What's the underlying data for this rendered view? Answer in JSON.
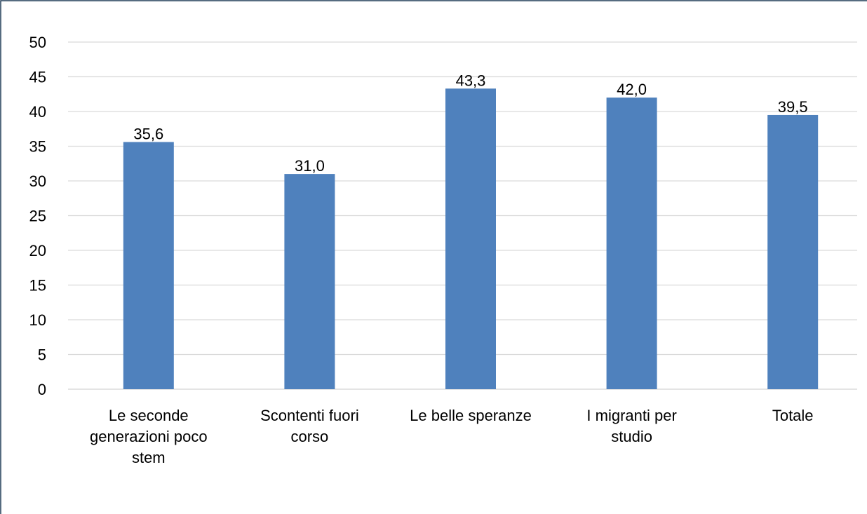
{
  "chart_data": {
    "type": "bar",
    "categories": [
      "Le seconde generazioni poco stem",
      "Scontenti fuori corso",
      "Le belle speranze",
      "I migranti per studio",
      "Totale"
    ],
    "values": [
      35.6,
      31.0,
      43.3,
      42.0,
      39.5
    ],
    "value_labels": [
      "35,6",
      "31,0",
      "43,3",
      "42,0",
      "39,5"
    ],
    "color": "#4f81bd",
    "ylim": [
      0,
      50
    ],
    "yticks": [
      0,
      5,
      10,
      15,
      20,
      25,
      30,
      35,
      40,
      45,
      50
    ],
    "grid": true
  }
}
